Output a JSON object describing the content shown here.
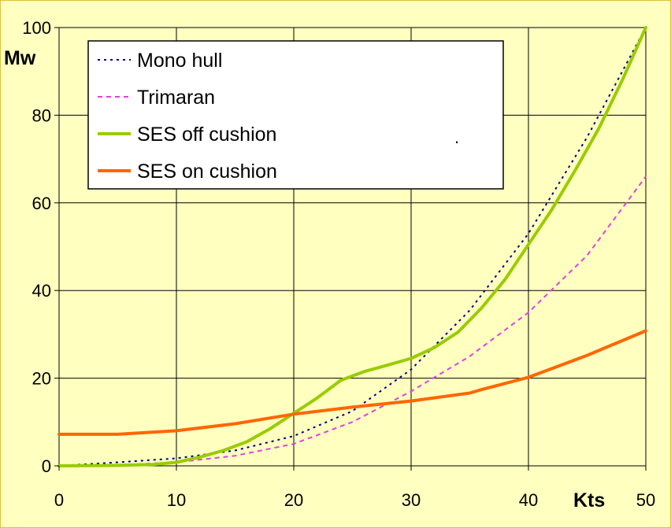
{
  "chart_data": {
    "type": "line",
    "title": "",
    "xlabel": "Kts",
    "ylabel": "Mw",
    "xlim": [
      0,
      50
    ],
    "ylim": [
      0,
      100
    ],
    "x_ticks": [
      0,
      10,
      20,
      30,
      40,
      50
    ],
    "y_ticks": [
      0,
      20,
      40,
      60,
      80,
      100
    ],
    "grid": true,
    "legend_position": "top-left",
    "background": "#ffffc0",
    "series": [
      {
        "name": "Mono hull",
        "style": "dotted",
        "color": "#000080",
        "x": [
          0,
          5,
          10,
          15,
          20,
          25,
          30,
          35,
          40,
          45,
          50
        ],
        "y": [
          0,
          0.8,
          1.7,
          3.5,
          6.8,
          12.5,
          22,
          35.5,
          53,
          75,
          100
        ]
      },
      {
        "name": "Trimaran",
        "style": "dashed",
        "color": "#e040e0",
        "x": [
          0,
          5,
          10,
          15,
          20,
          25,
          30,
          35,
          40,
          45,
          50
        ],
        "y": [
          0,
          0.2,
          0.8,
          2.3,
          5,
          10,
          17,
          25,
          35,
          48,
          66
        ]
      },
      {
        "name": "SES off cushion",
        "style": "solid",
        "color": "#99cc00",
        "x": [
          0,
          5,
          8,
          10,
          12,
          14,
          16,
          18,
          20,
          22,
          24,
          26,
          28,
          30,
          32,
          34,
          36,
          38,
          40,
          42,
          44,
          46,
          48,
          50
        ],
        "y": [
          0,
          0.1,
          0.3,
          0.8,
          2,
          3.5,
          5.5,
          8.5,
          12,
          15.5,
          19.5,
          21.5,
          23,
          24.5,
          27,
          30.5,
          36,
          42.5,
          50.5,
          58.5,
          67.5,
          77,
          88,
          100
        ]
      },
      {
        "name": "SES on cushion",
        "style": "solid",
        "color": "#ff6600",
        "x": [
          0,
          5,
          10,
          15,
          20,
          25,
          30,
          35,
          36,
          40,
          45,
          50
        ],
        "y": [
          7.2,
          7.2,
          8,
          9.6,
          11.8,
          13.4,
          14.8,
          16.6,
          17.4,
          20.2,
          25.2,
          30.8
        ]
      }
    ]
  }
}
